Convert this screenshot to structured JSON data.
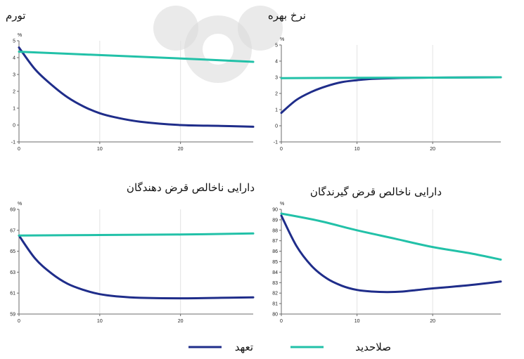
{
  "colors": {
    "commitment": "#1f2d8a",
    "discretion": "#22c1a8",
    "axis": "#6b6b6b",
    "grid": "#e3e3e3"
  },
  "legend": {
    "commitment_label": "تعهد",
    "discretion_label": "صلاحدید"
  },
  "chart_data": [
    {
      "type": "line",
      "title": "تورم",
      "unit_label": "%",
      "xlim": [
        0,
        29
      ],
      "ylim": [
        -1,
        5
      ],
      "xticks": [
        0,
        10,
        20
      ],
      "yticks": [
        -1,
        0,
        1,
        2,
        3,
        4,
        5
      ],
      "series": [
        {
          "name": "تعهد",
          "color_key": "commitment",
          "x": [
            0,
            2,
            4,
            6,
            8,
            10,
            12,
            15,
            20,
            25,
            29
          ],
          "y": [
            4.6,
            3.3,
            2.4,
            1.65,
            1.1,
            0.7,
            0.45,
            0.2,
            0.0,
            -0.05,
            -0.1
          ]
        },
        {
          "name": "صلاحدید",
          "color_key": "discretion",
          "x": [
            0,
            10,
            20,
            29
          ],
          "y": [
            4.35,
            4.15,
            3.95,
            3.75
          ]
        }
      ]
    },
    {
      "type": "line",
      "title": "نرخ بهره",
      "unit_label": "%",
      "xlim": [
        0,
        29
      ],
      "ylim": [
        -1,
        5
      ],
      "xticks": [
        0,
        10,
        20
      ],
      "yticks": [
        -1,
        0,
        1,
        2,
        3,
        4,
        5
      ],
      "series": [
        {
          "name": "تعهد",
          "color_key": "commitment",
          "x": [
            0,
            2,
            4,
            6,
            8,
            10,
            12,
            15,
            20,
            29
          ],
          "y": [
            0.8,
            1.6,
            2.1,
            2.45,
            2.7,
            2.82,
            2.9,
            2.95,
            2.98,
            3.0
          ]
        },
        {
          "name": "صلاحدید",
          "color_key": "discretion",
          "x": [
            0,
            10,
            20,
            29
          ],
          "y": [
            2.95,
            2.97,
            2.98,
            3.0
          ]
        }
      ]
    },
    {
      "type": "line",
      "title": "دارایی ناخالص قرض دهندگان",
      "unit_label": "%",
      "xlim": [
        0,
        29
      ],
      "ylim": [
        59,
        69
      ],
      "xticks": [
        0,
        10,
        20
      ],
      "yticks": [
        59,
        61,
        63,
        65,
        67,
        69
      ],
      "series": [
        {
          "name": "تعهد",
          "color_key": "commitment",
          "x": [
            0,
            2,
            4,
            6,
            8,
            10,
            12,
            15,
            20,
            25,
            29
          ],
          "y": [
            66.5,
            64.3,
            62.9,
            61.9,
            61.3,
            60.9,
            60.7,
            60.55,
            60.5,
            60.55,
            60.6
          ]
        },
        {
          "name": "صلاحدید",
          "color_key": "discretion",
          "x": [
            0,
            10,
            20,
            29
          ],
          "y": [
            66.5,
            66.55,
            66.6,
            66.7
          ]
        }
      ]
    },
    {
      "type": "line",
      "title": "دارایی ناخالص قرض گیرندگان",
      "unit_label": "%",
      "xlim": [
        0,
        29
      ],
      "ylim": [
        80,
        90
      ],
      "xticks": [
        0,
        10,
        20
      ],
      "yticks": [
        80,
        81,
        82,
        83,
        84,
        85,
        86,
        87,
        88,
        89,
        90
      ],
      "series": [
        {
          "name": "تعهد",
          "color_key": "commitment",
          "x": [
            0,
            2,
            4,
            6,
            8,
            10,
            12,
            14,
            16,
            18,
            20,
            24,
            29
          ],
          "y": [
            89.4,
            86.5,
            84.6,
            83.4,
            82.7,
            82.3,
            82.15,
            82.1,
            82.15,
            82.3,
            82.45,
            82.7,
            83.1
          ]
        },
        {
          "name": "صلاحدید",
          "color_key": "discretion",
          "x": [
            0,
            5,
            10,
            15,
            20,
            25,
            29
          ],
          "y": [
            89.6,
            88.9,
            88.0,
            87.2,
            86.4,
            85.8,
            85.2
          ]
        }
      ]
    }
  ]
}
